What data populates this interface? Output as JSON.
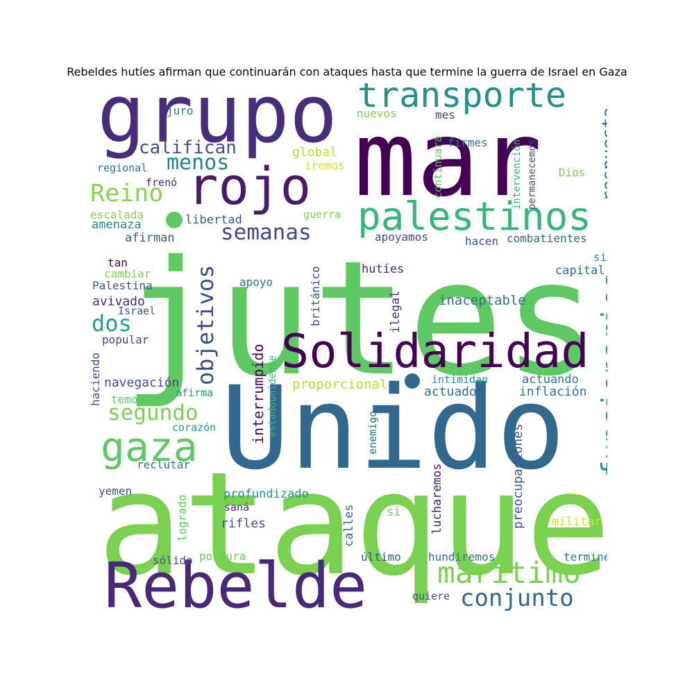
{
  "title": "Rebeldes hutíes afirman que continuarán con ataques hasta que termine la guerra de Israel en Gaza",
  "cloud": {
    "words": [
      {
        "text": "jutes",
        "color": "#5ec962"
      },
      {
        "text": "ataque",
        "color": "#7ad151"
      },
      {
        "text": "Unido",
        "color": "#31688e"
      },
      {
        "text": "mar",
        "color": "#440154"
      },
      {
        "text": "grupo",
        "color": "#472d7b"
      },
      {
        "text": "Rebelde",
        "color": "#482878"
      },
      {
        "text": "rojo",
        "color": "#481a6c"
      },
      {
        "text": "Solidaridad",
        "color": "#440154"
      },
      {
        "text": "palestinos",
        "color": "#35b779"
      },
      {
        "text": "transporte",
        "color": "#21918c"
      },
      {
        "text": "marítimo",
        "color": "#7ad151"
      },
      {
        "text": "gaza",
        "color": "#5ec962"
      },
      {
        "text": "funcionarios",
        "color": "#1f9e89"
      },
      {
        "text": "conjunto",
        "color": "#31688e"
      },
      {
        "text": "objetivos",
        "color": "#3e4a89"
      },
      {
        "text": "segundo",
        "color": "#7ad151"
      },
      {
        "text": "semanas",
        "color": "#3e4a89"
      },
      {
        "text": "Reino",
        "color": "#86d549"
      },
      {
        "text": "menos",
        "color": "#26828e"
      },
      {
        "text": "califican",
        "color": "#3b528b"
      },
      {
        "text": "respuesta",
        "color": "#2c728e"
      },
      {
        "text": "dos",
        "color": "#1f9e89"
      },
      {
        "text": "interrumpido",
        "color": "#440154"
      },
      {
        "text": "inaceptable",
        "color": "#2c728e"
      },
      {
        "text": "proporcional",
        "color": "#b5de2b"
      },
      {
        "text": "navegación",
        "color": "#3e4a89"
      },
      {
        "text": "actuando",
        "color": "#2a788e"
      },
      {
        "text": "actuado",
        "color": "#2c728e"
      },
      {
        "text": "inflación",
        "color": "#2c728e"
      },
      {
        "text": "preocupaciones",
        "color": "#3b528b"
      },
      {
        "text": "combatientes",
        "color": "#31688e"
      },
      {
        "text": "apoyamos",
        "color": "#3e4a89"
      },
      {
        "text": "hutíes",
        "color": "#482878"
      },
      {
        "text": "ilegal",
        "color": "#482878"
      },
      {
        "text": "apoyo",
        "color": "#2c728e"
      },
      {
        "text": "británico",
        "color": "#3e4a89"
      },
      {
        "text": "estadounidense",
        "color": "#35b779"
      },
      {
        "text": "enemigo",
        "color": "#2c728e"
      },
      {
        "text": "intimidan",
        "color": "#21918c"
      },
      {
        "text": "lucharemos",
        "color": "#481a6c"
      },
      {
        "text": "calles",
        "color": "#31688e"
      },
      {
        "text": "último",
        "color": "#3b528b"
      },
      {
        "text": "hundiremos",
        "color": "#31688e"
      },
      {
        "text": "termine",
        "color": "#2a788e"
      },
      {
        "text": "quiere",
        "color": "#3e4a89"
      },
      {
        "text": "militar",
        "color": "#dae319"
      },
      {
        "text": "si",
        "color": "#6ece58"
      },
      {
        "text": "profundizado",
        "color": "#21918c"
      },
      {
        "text": "saná",
        "color": "#482878"
      },
      {
        "text": "rifles",
        "color": "#3b528b"
      },
      {
        "text": "postura",
        "color": "#6ece58"
      },
      {
        "text": "sólido",
        "color": "#3b528b"
      },
      {
        "text": "logrado",
        "color": "#5ec962"
      },
      {
        "text": "yemen",
        "color": "#3e4a89"
      },
      {
        "text": "reclutar",
        "color": "#2c728e"
      },
      {
        "text": "corazón",
        "color": "#1f9e89"
      },
      {
        "text": "afirma",
        "color": "#21918c"
      },
      {
        "text": "temores",
        "color": "#5ec962"
      },
      {
        "text": "haciendo",
        "color": "#3b528b"
      },
      {
        "text": "popular",
        "color": "#3e4a89"
      },
      {
        "text": "Israel",
        "color": "#3b528b"
      },
      {
        "text": "avivado",
        "color": "#482878"
      },
      {
        "text": "Palestina",
        "color": "#3b528b"
      },
      {
        "text": "cambiar",
        "color": "#7ad151"
      },
      {
        "text": "tan",
        "color": "#440154"
      },
      {
        "text": "afirman",
        "color": "#3b528b"
      },
      {
        "text": "amenaza",
        "color": "#26828e"
      },
      {
        "text": "escalada",
        "color": "#86d549"
      },
      {
        "text": "libertad",
        "color": "#3b528b"
      },
      {
        "text": "guerra",
        "color": "#7ad151"
      },
      {
        "text": "iremos",
        "color": "#dae319"
      },
      {
        "text": "global",
        "color": "#bddf26"
      },
      {
        "text": "frenó",
        "color": "#482878"
      },
      {
        "text": "regional",
        "color": "#2c728e"
      },
      {
        "text": "juro",
        "color": "#2c728e"
      },
      {
        "text": "nuevos",
        "color": "#7ad151"
      },
      {
        "text": "mes",
        "color": "#3e4a89"
      },
      {
        "text": "continuará",
        "color": "#5ec962"
      },
      {
        "text": "intervención",
        "color": "#35b779"
      },
      {
        "text": "permanecemos",
        "color": "#3e4a89"
      },
      {
        "text": "firmes",
        "color": "#2c728e"
      },
      {
        "text": "Dios",
        "color": "#7ad151"
      },
      {
        "text": "hacen",
        "color": "#3b528b"
      },
      {
        "text": "sido",
        "color": "#21918c"
      },
      {
        "text": "capital",
        "color": "#31688e"
      },
      {
        "text": "dot-1",
        "color": "#5ec962"
      },
      {
        "text": "dot-2",
        "color": "#31688e"
      }
    ]
  }
}
